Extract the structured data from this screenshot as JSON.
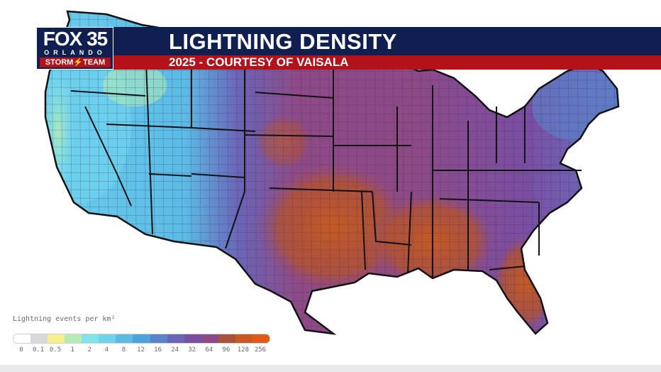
{
  "header": {
    "title": "LIGHTNING DENSITY",
    "subtitle": "2025 - COURTESY OF VAISALA"
  },
  "logo": {
    "main": "FOX 35",
    "city": "ORLANDO",
    "team": "STORM⚡TEAM"
  },
  "legend": {
    "title": "Lightning events per km²",
    "labels": [
      "0",
      "0.1",
      "0.5",
      "1",
      "2",
      "4",
      "8",
      "12",
      "16",
      "24",
      "32",
      "64",
      "96",
      "128",
      "256"
    ],
    "colors": [
      "#ffffff",
      "#d9d9d9",
      "#f7f08a",
      "#b5ecb5",
      "#7fe3ec",
      "#6fd3ee",
      "#5bbbe6",
      "#4ba3dc",
      "#5a83cc",
      "#6a65b8",
      "#7a4fa3",
      "#8e4a86",
      "#a8523a",
      "#c85a1e",
      "#e05a16"
    ]
  },
  "colors": {
    "banner_blue": "#0f1f4f",
    "banner_red": "#b3121b",
    "background": "#ffffff"
  }
}
